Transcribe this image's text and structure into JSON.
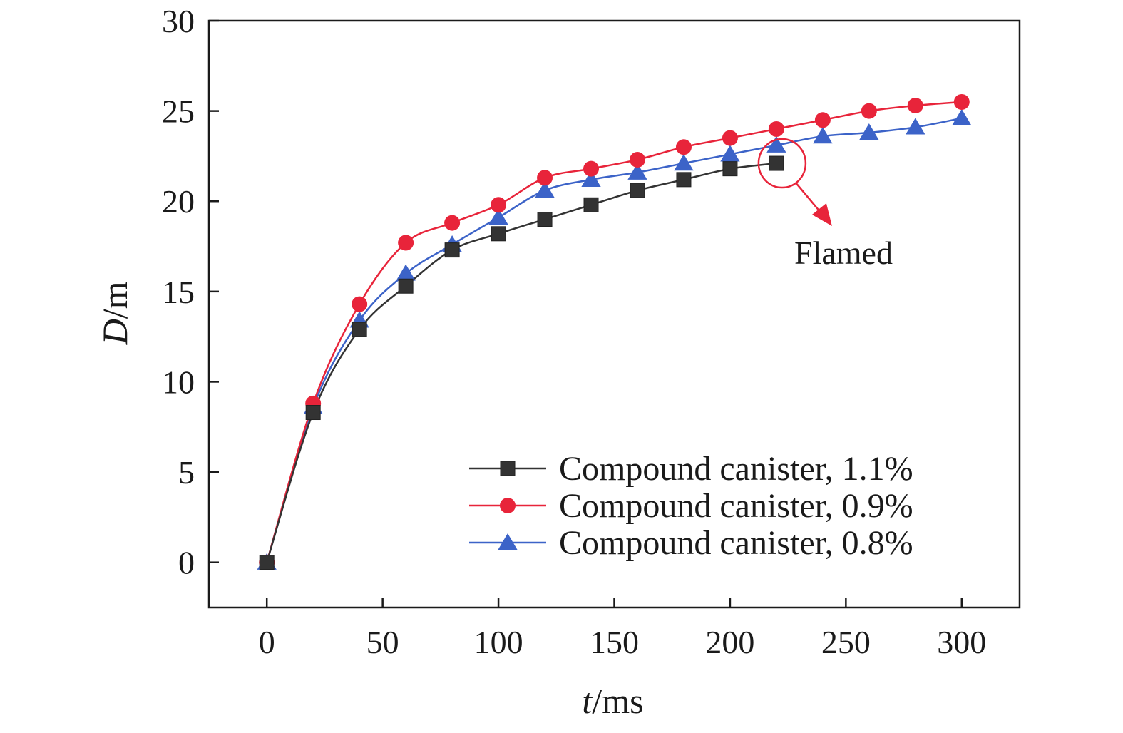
{
  "chart_data": {
    "type": "line",
    "title": "",
    "xlabel_var": "t",
    "xlabel_unit": "/ms",
    "ylabel_var": "D",
    "ylabel_unit": "/m",
    "xlim": [
      -25,
      325
    ],
    "ylim": [
      -2.5,
      30
    ],
    "xticks": [
      0,
      50,
      100,
      150,
      200,
      250,
      300
    ],
    "yticks": [
      0,
      5,
      10,
      15,
      20,
      25,
      30
    ],
    "grid": false,
    "legend_position": "bottom-right",
    "series": [
      {
        "name": "Compound canister, 1.1%",
        "color": "#333333",
        "marker": "square",
        "x": [
          0,
          20,
          40,
          60,
          80,
          100,
          120,
          140,
          160,
          180,
          200,
          220
        ],
        "y": [
          0,
          8.3,
          12.9,
          15.3,
          17.3,
          18.2,
          19.0,
          19.8,
          20.6,
          21.2,
          21.8,
          22.1
        ]
      },
      {
        "name": "Compound canister, 0.9%",
        "color": "#e8243a",
        "marker": "circle",
        "x": [
          0,
          20,
          40,
          60,
          80,
          100,
          120,
          140,
          160,
          180,
          200,
          220,
          240,
          260,
          280,
          300
        ],
        "y": [
          0,
          8.8,
          14.3,
          17.7,
          18.8,
          19.8,
          21.3,
          21.8,
          22.3,
          23.0,
          23.5,
          24.0,
          24.5,
          25.0,
          25.3,
          25.5
        ]
      },
      {
        "name": "Compound canister, 0.8%",
        "color": "#3c63c8",
        "marker": "triangle",
        "x": [
          0,
          20,
          40,
          60,
          80,
          100,
          120,
          140,
          160,
          180,
          200,
          220,
          240,
          260,
          280,
          300
        ],
        "y": [
          0,
          8.6,
          13.4,
          16.0,
          17.6,
          19.1,
          20.6,
          21.2,
          21.6,
          22.1,
          22.6,
          23.1,
          23.6,
          23.8,
          24.1,
          24.6
        ]
      }
    ],
    "annotation": {
      "text": "Flamed",
      "target_x": 220,
      "target_y": 22.1,
      "color": "#e8243a"
    }
  }
}
